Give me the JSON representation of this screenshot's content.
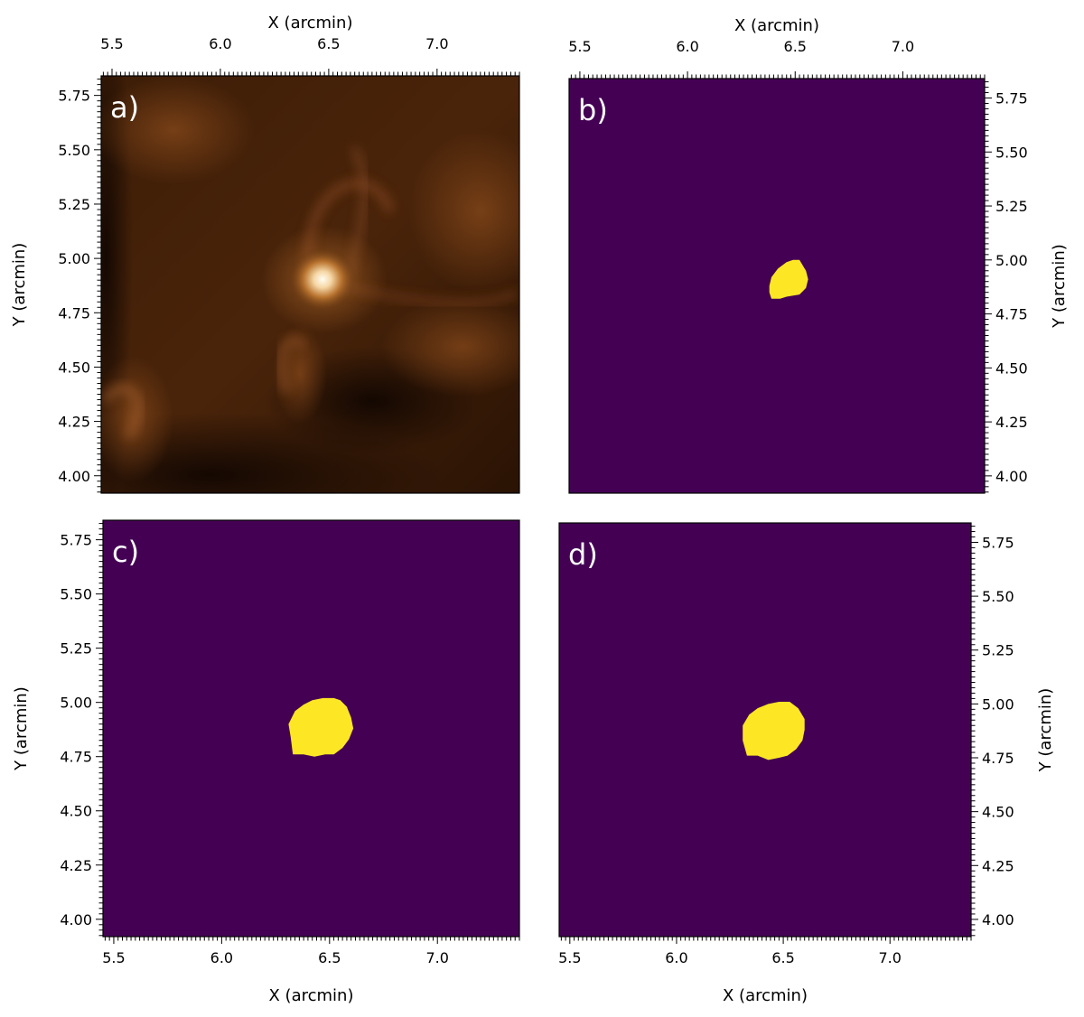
{
  "colors": {
    "mask_background": "#440154",
    "mask_foreground": "#fde725",
    "image_dark": "#1a0b02",
    "image_mid": "#5a2d0c",
    "image_bright": "#fff8e6"
  },
  "chart_data": [
    {
      "id": "a",
      "type": "heatmap",
      "label": "a)",
      "colormap": "sdoaia171-like copper",
      "xlabel": "X (arcmin)",
      "ylabel": "Y (arcmin)",
      "xlim": [
        5.45,
        7.38
      ],
      "ylim": [
        3.92,
        5.84
      ],
      "xticks": [
        "5.5",
        "6.0",
        "6.5",
        "7.0"
      ],
      "yticks": [
        "4.00",
        "4.25",
        "4.50",
        "4.75",
        "5.00",
        "5.25",
        "5.50",
        "5.75"
      ],
      "xaxis_position": "top",
      "yaxis_position": "left",
      "bright_point_center": [
        6.48,
        4.92
      ]
    },
    {
      "id": "b",
      "type": "heatmap",
      "label": "b)",
      "colormap": "viridis binary mask",
      "xlabel": "X (arcmin)",
      "ylabel": "Y (arcmin)",
      "xlim": [
        5.45,
        7.38
      ],
      "ylim": [
        3.92,
        5.84
      ],
      "xticks": [
        "5.5",
        "6.0",
        "6.5",
        "7.0"
      ],
      "yticks": [
        "4.00",
        "4.25",
        "4.50",
        "4.75",
        "5.00",
        "5.25",
        "5.50",
        "5.75"
      ],
      "xaxis_position": "top",
      "yaxis_position": "right",
      "mask_polygon": [
        [
          6.39,
          4.82
        ],
        [
          6.43,
          4.82
        ],
        [
          6.46,
          4.83
        ],
        [
          6.52,
          4.84
        ],
        [
          6.55,
          4.87
        ],
        [
          6.56,
          4.91
        ],
        [
          6.55,
          4.95
        ],
        [
          6.52,
          5.0
        ],
        [
          6.49,
          5.0
        ],
        [
          6.46,
          4.99
        ],
        [
          6.42,
          4.96
        ],
        [
          6.39,
          4.92
        ],
        [
          6.38,
          4.88
        ],
        [
          6.38,
          4.85
        ]
      ]
    },
    {
      "id": "c",
      "type": "heatmap",
      "label": "c)",
      "colormap": "viridis binary mask",
      "xlabel": "X (arcmin)",
      "ylabel": "Y (arcmin)",
      "xlim": [
        5.45,
        7.38
      ],
      "ylim": [
        3.92,
        5.84
      ],
      "xticks": [
        "5.5",
        "6.0",
        "6.5",
        "7.0"
      ],
      "yticks": [
        "4.00",
        "4.25",
        "4.50",
        "4.75",
        "5.00",
        "5.25",
        "5.50",
        "5.75"
      ],
      "xaxis_position": "bottom",
      "yaxis_position": "left",
      "mask_polygon": [
        [
          6.33,
          4.76
        ],
        [
          6.38,
          4.76
        ],
        [
          6.43,
          4.75
        ],
        [
          6.48,
          4.76
        ],
        [
          6.52,
          4.76
        ],
        [
          6.56,
          4.79
        ],
        [
          6.59,
          4.83
        ],
        [
          6.61,
          4.88
        ],
        [
          6.6,
          4.93
        ],
        [
          6.58,
          4.98
        ],
        [
          6.55,
          5.01
        ],
        [
          6.52,
          5.02
        ],
        [
          6.47,
          5.02
        ],
        [
          6.42,
          5.01
        ],
        [
          6.38,
          4.99
        ],
        [
          6.34,
          4.96
        ],
        [
          6.31,
          4.9
        ],
        [
          6.32,
          4.84
        ]
      ]
    },
    {
      "id": "d",
      "type": "heatmap",
      "label": "d)",
      "colormap": "viridis binary mask",
      "xlabel": "X (arcmin)",
      "ylabel": "Y (arcmin)",
      "xlim": [
        5.45,
        7.38
      ],
      "ylim": [
        3.92,
        5.84
      ],
      "xticks": [
        "5.5",
        "6.0",
        "6.5",
        "7.0"
      ],
      "yticks": [
        "4.00",
        "4.25",
        "4.50",
        "4.75",
        "5.00",
        "5.25",
        "5.50",
        "5.75"
      ],
      "xaxis_position": "bottom",
      "yaxis_position": "right",
      "mask_polygon": [
        [
          6.33,
          4.76
        ],
        [
          6.38,
          4.76
        ],
        [
          6.43,
          4.74
        ],
        [
          6.48,
          4.75
        ],
        [
          6.52,
          4.76
        ],
        [
          6.56,
          4.79
        ],
        [
          6.59,
          4.83
        ],
        [
          6.6,
          4.88
        ],
        [
          6.6,
          4.93
        ],
        [
          6.57,
          4.98
        ],
        [
          6.53,
          5.01
        ],
        [
          6.48,
          5.01
        ],
        [
          6.43,
          5.0
        ],
        [
          6.38,
          4.98
        ],
        [
          6.34,
          4.95
        ],
        [
          6.31,
          4.9
        ],
        [
          6.31,
          4.83
        ]
      ]
    }
  ]
}
